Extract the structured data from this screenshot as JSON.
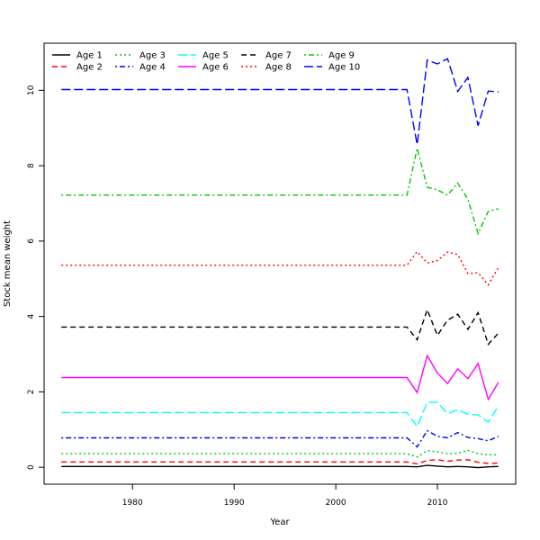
{
  "chart_data": {
    "type": "line",
    "title": "",
    "xlabel": "Year",
    "ylabel": "Stock mean weight",
    "xlim": [
      1971.3,
      2017.7
    ],
    "ylim": [
      -0.45,
      11.25
    ],
    "x_ticks": [
      1980,
      1990,
      2000,
      2010
    ],
    "y_ticks": [
      0,
      2,
      4,
      6,
      8,
      10
    ],
    "grid": false,
    "legend_position": "top-left",
    "x": [
      1973,
      2007,
      2008,
      2009,
      2010,
      2011,
      2012,
      2013,
      2014,
      2015,
      2016
    ],
    "series": [
      {
        "name": "Age 1",
        "color": "#000000",
        "dash": "solid",
        "values": [
          0.02,
          0.02,
          0.01,
          0.05,
          0.03,
          0.01,
          0.02,
          0.01,
          -0.01,
          0.01,
          0.02
        ]
      },
      {
        "name": "Age 2",
        "color": "#ff0000",
        "dash": "dashed",
        "values": [
          0.14,
          0.14,
          0.09,
          0.18,
          0.2,
          0.16,
          0.19,
          0.2,
          0.13,
          0.1,
          0.11
        ]
      },
      {
        "name": "Age 3",
        "color": "#00cc00",
        "dash": "dotted",
        "values": [
          0.36,
          0.36,
          0.27,
          0.44,
          0.41,
          0.36,
          0.37,
          0.45,
          0.36,
          0.33,
          0.33
        ]
      },
      {
        "name": "Age 4",
        "color": "#0000ff",
        "dash": "dotdash",
        "values": [
          0.78,
          0.78,
          0.54,
          0.97,
          0.82,
          0.78,
          0.92,
          0.79,
          0.76,
          0.7,
          0.82
        ]
      },
      {
        "name": "Age 5",
        "color": "#00ffff",
        "dash": "longdash",
        "values": [
          1.45,
          1.45,
          1.08,
          1.72,
          1.72,
          1.42,
          1.53,
          1.4,
          1.39,
          1.2,
          1.62
        ]
      },
      {
        "name": "Age 6",
        "color": "#ff00ff",
        "dash": "solid",
        "values": [
          2.38,
          2.38,
          1.98,
          2.96,
          2.5,
          2.22,
          2.61,
          2.35,
          2.75,
          1.8,
          2.25
        ]
      },
      {
        "name": "Age 7",
        "color": "#000000",
        "dash": "dashed",
        "values": [
          3.72,
          3.72,
          3.38,
          4.18,
          3.5,
          3.9,
          4.06,
          3.66,
          4.1,
          3.26,
          3.56
        ]
      },
      {
        "name": "Age 8",
        "color": "#ff0000",
        "dash": "dotted",
        "values": [
          5.36,
          5.36,
          5.72,
          5.42,
          5.48,
          5.71,
          5.64,
          5.14,
          5.16,
          4.84,
          5.3
        ]
      },
      {
        "name": "Age 9",
        "color": "#00cc00",
        "dash": "dotdash",
        "values": [
          7.22,
          7.22,
          8.46,
          7.43,
          7.36,
          7.22,
          7.54,
          7.11,
          6.2,
          6.79,
          6.86
        ]
      },
      {
        "name": "Age 10",
        "color": "#0000ff",
        "dash": "longdash",
        "values": [
          10.02,
          10.02,
          8.56,
          10.8,
          10.7,
          10.84,
          9.97,
          10.34,
          9.06,
          9.98,
          9.96
        ]
      }
    ]
  }
}
